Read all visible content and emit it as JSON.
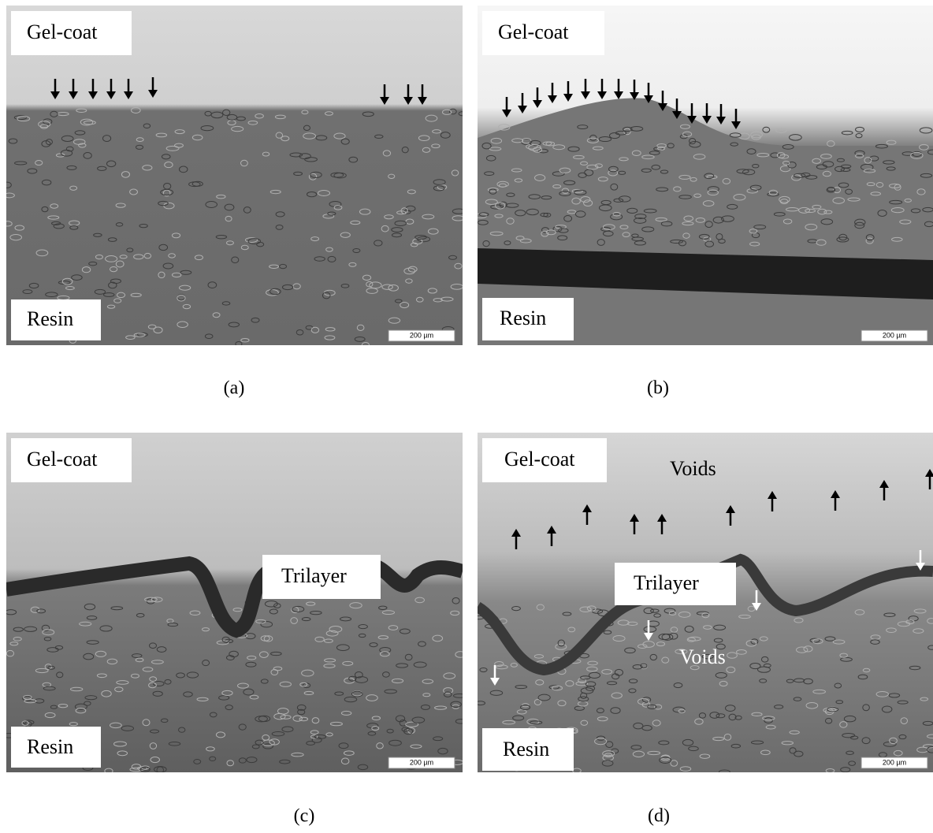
{
  "panels": [
    {
      "caption": "(a)",
      "labels": {
        "top": "Gel-coat",
        "bottom": "Resin"
      },
      "scale_bar": "200 µm"
    },
    {
      "caption": "(b)",
      "labels": {
        "top": "Gel-coat",
        "bottom": "Resin"
      },
      "scale_bar": "200 µm"
    },
    {
      "caption": "(c)",
      "labels": {
        "top": "Gel-coat",
        "middle": "Trilayer",
        "bottom": "Resin"
      },
      "scale_bar": "200 µm"
    },
    {
      "caption": "(d)",
      "labels": {
        "top": "Gel-coat",
        "middle": "Trilayer",
        "bottom": "Resin",
        "voids_upper": "Voids",
        "voids_lower": "Voids"
      },
      "scale_bar": "200 µm"
    }
  ]
}
